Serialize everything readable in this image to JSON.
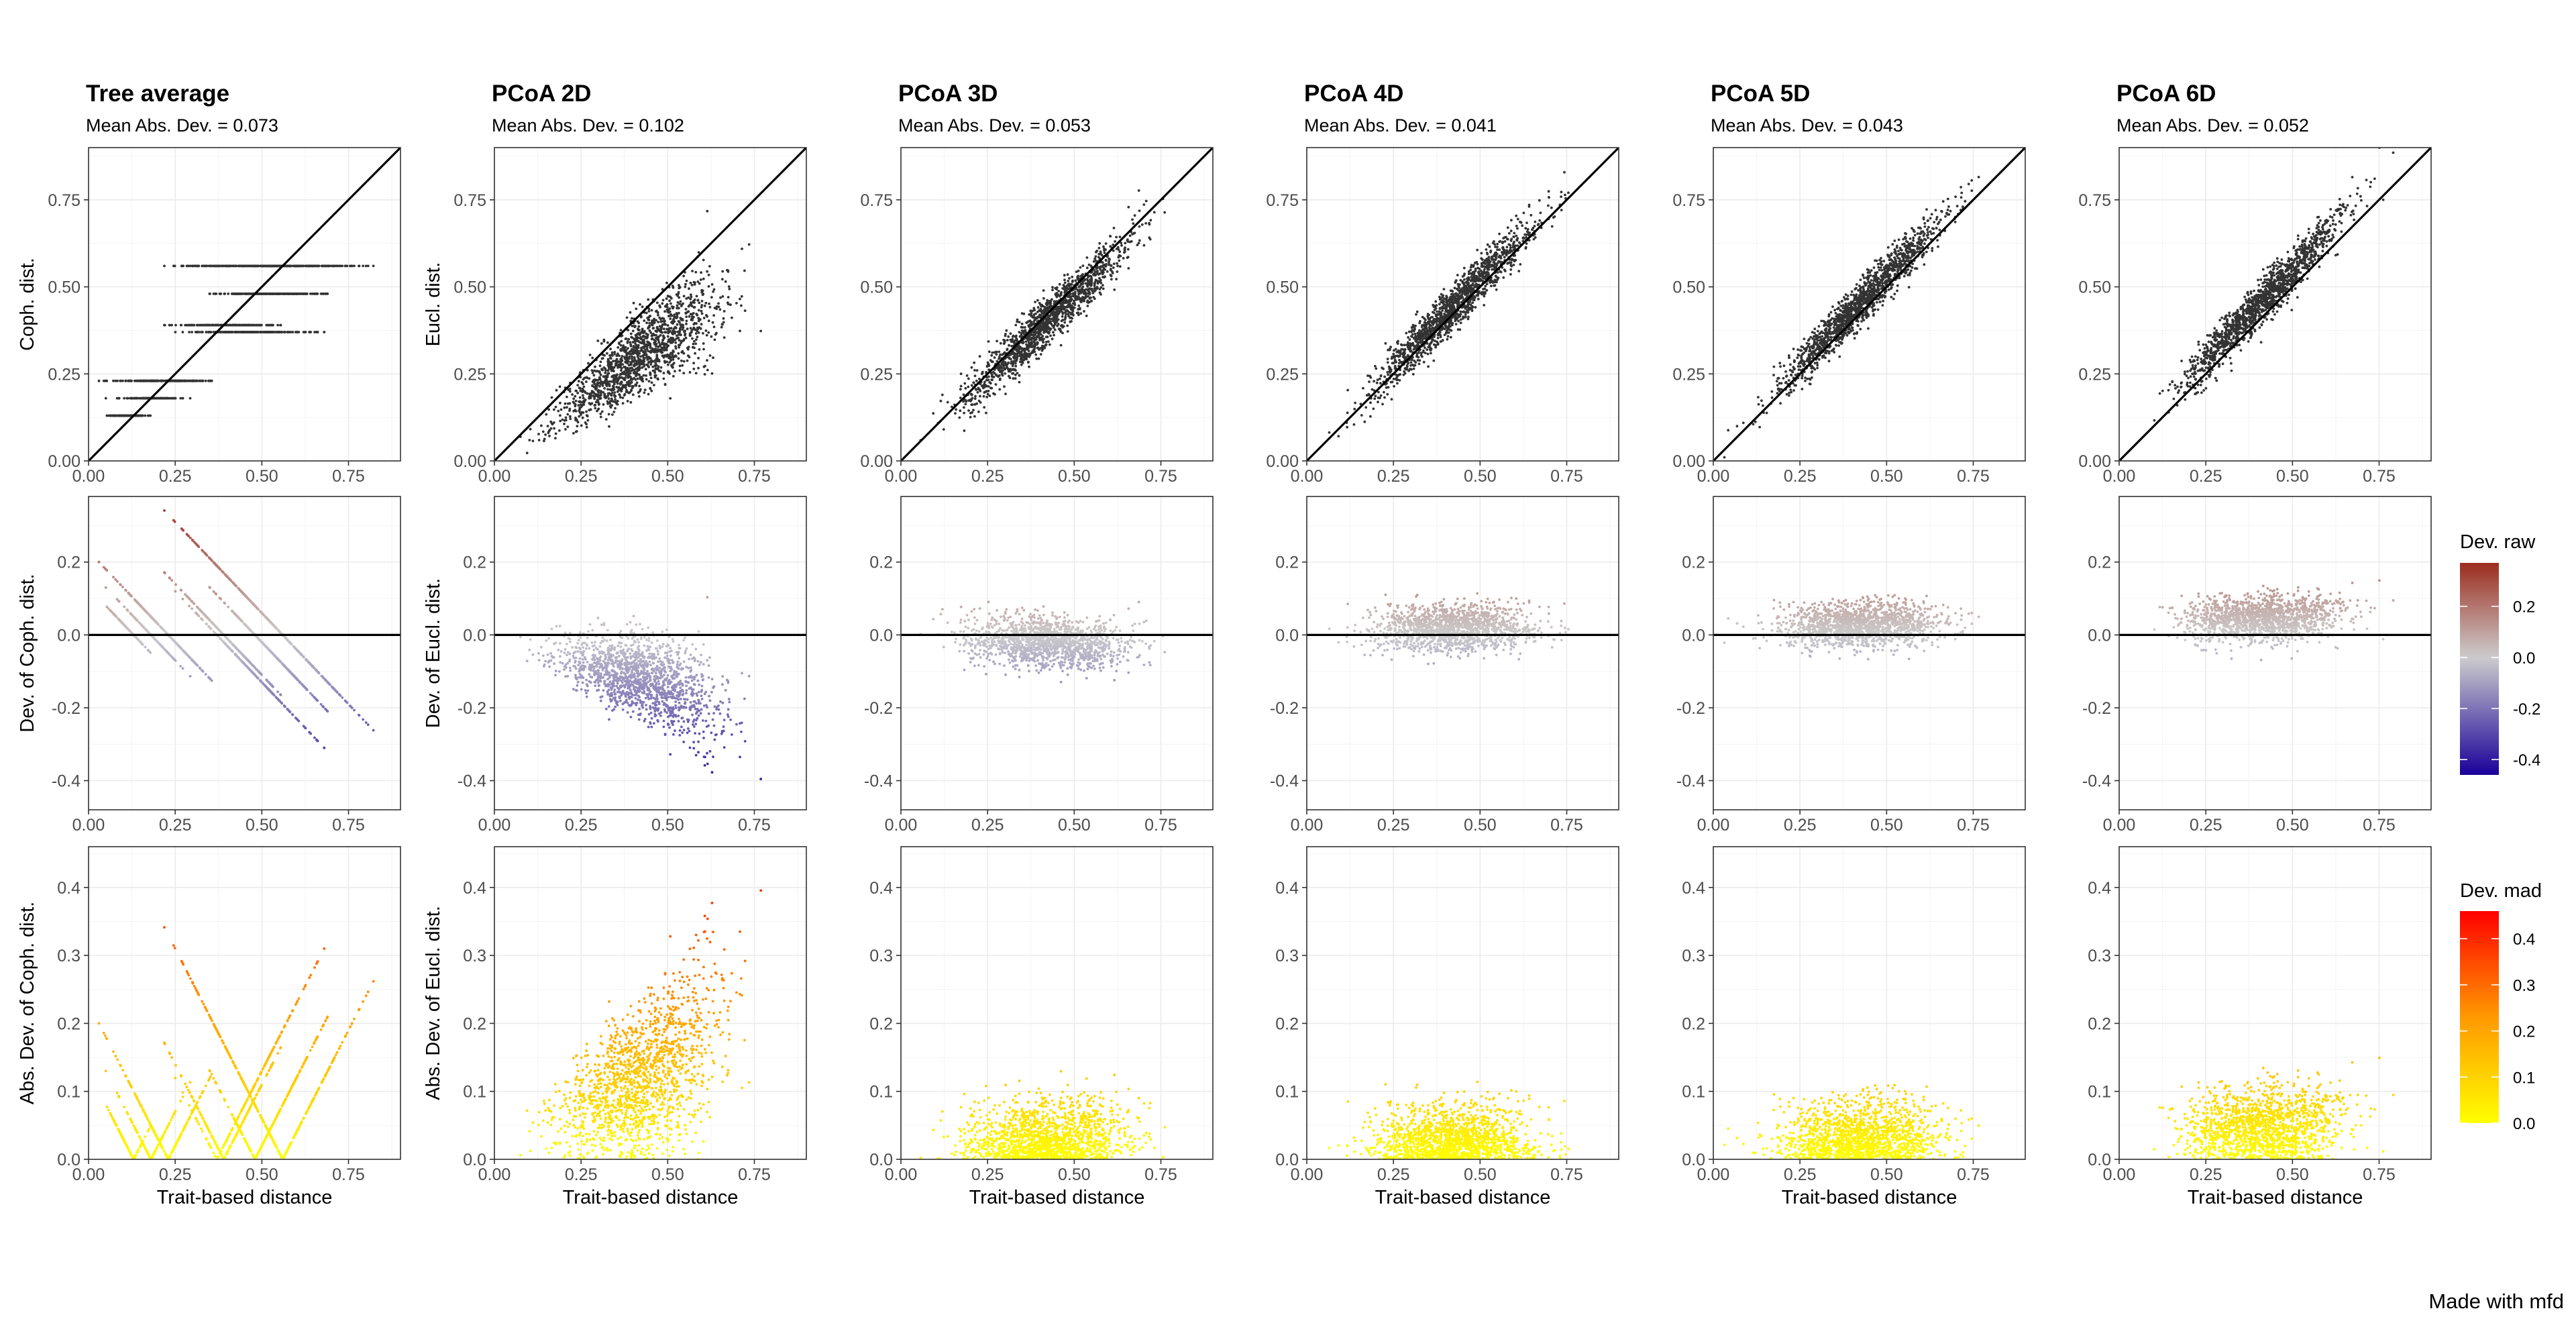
{
  "footer": "Made with mfd",
  "x_axis_title": "Trait-based distance",
  "chart_data": {
    "type": "scatter",
    "n_pairs_approx": 1500,
    "x_ticks": [
      "0.00",
      "0.25",
      "0.50",
      "0.75"
    ],
    "xlim": [
      0,
      0.9
    ],
    "panels": [
      {
        "title": "Tree average",
        "subtitle": "Mean Abs. Dev. = 0.073",
        "kind": "tree",
        "mad": 0.073,
        "row_ylabels": [
          "Coph. dist.",
          "Dev. of Coph. dist.",
          "Abs. Dev. of Coph. dist."
        ],
        "cophenetic_levels": [
          0.13,
          0.18,
          0.23,
          0.37,
          0.39,
          0.48,
          0.56
        ],
        "level_x_ranges": [
          [
            0.02,
            0.2
          ],
          [
            0.05,
            0.3
          ],
          [
            0.03,
            0.4
          ],
          [
            0.25,
            0.68
          ],
          [
            0.2,
            0.6
          ],
          [
            0.3,
            0.75
          ],
          [
            0.2,
            0.87
          ]
        ]
      },
      {
        "title": "PCoA 2D",
        "subtitle": "Mean Abs. Dev. = 0.102",
        "kind": "pcoa",
        "mad": 0.102,
        "bias": -0.08,
        "slope": 0.78,
        "spread": 0.07,
        "row_ylabels": [
          "Eucl. dist.",
          "Dev. of Eucl. dist.",
          "Abs. Dev. of Eucl. dist."
        ]
      },
      {
        "title": "PCoA 3D",
        "subtitle": "Mean Abs. Dev. = 0.053",
        "kind": "pcoa",
        "mad": 0.053,
        "bias": 0.0,
        "slope": 0.95,
        "spread": 0.05,
        "row_ylabels": [
          "",
          "",
          ""
        ]
      },
      {
        "title": "PCoA 4D",
        "subtitle": "Mean Abs. Dev. = 0.041",
        "kind": "pcoa",
        "mad": 0.041,
        "bias": 0.02,
        "slope": 1.0,
        "spread": 0.045,
        "row_ylabels": [
          "",
          "",
          ""
        ]
      },
      {
        "title": "PCoA 5D",
        "subtitle": "Mean Abs. Dev. = 0.043",
        "kind": "pcoa",
        "mad": 0.043,
        "bias": 0.03,
        "slope": 1.0,
        "spread": 0.045,
        "row_ylabels": [
          "",
          "",
          ""
        ]
      },
      {
        "title": "PCoA 6D",
        "subtitle": "Mean Abs. Dev. = 0.052",
        "kind": "pcoa",
        "mad": 0.052,
        "bias": 0.06,
        "slope": 0.98,
        "spread": 0.045,
        "row_ylabels": [
          "",
          "",
          ""
        ]
      }
    ],
    "rows": [
      {
        "name": "distance",
        "ylim": [
          0,
          0.9
        ],
        "y_ticks": [
          {
            "value": 0.0,
            "label": "0.00"
          },
          {
            "value": 0.25,
            "label": "0.25"
          },
          {
            "value": 0.5,
            "label": "0.50"
          },
          {
            "value": 0.75,
            "label": "0.75"
          }
        ],
        "reference_line": "identity",
        "point_color": "#333333"
      },
      {
        "name": "deviation",
        "ylim": [
          -0.48,
          0.38
        ],
        "y_ticks": [
          {
            "value": -0.4,
            "label": "-0.4"
          },
          {
            "value": -0.2,
            "label": "-0.2"
          },
          {
            "value": 0.0,
            "label": "0.0"
          },
          {
            "value": 0.2,
            "label": "0.2"
          }
        ],
        "reference_line": "zero"
      },
      {
        "name": "absolute deviation",
        "ylim": [
          0,
          0.46
        ],
        "y_ticks": [
          {
            "value": 0.0,
            "label": "0.0"
          },
          {
            "value": 0.1,
            "label": "0.1"
          },
          {
            "value": 0.2,
            "label": "0.2"
          },
          {
            "value": 0.3,
            "label": "0.3"
          },
          {
            "value": 0.4,
            "label": "0.4"
          }
        ],
        "reference_line": "none"
      }
    ],
    "legends": [
      {
        "title": "Dev. raw",
        "range": [
          -0.46,
          0.37
        ],
        "colors": [
          "#1a0099",
          "#cccccc",
          "#9c2d1f"
        ],
        "ticks": [
          {
            "value": 0.2,
            "label": "0.2"
          },
          {
            "value": 0.0,
            "label": "0.0"
          },
          {
            "value": -0.2,
            "label": "-0.2"
          },
          {
            "value": -0.4,
            "label": "-0.4"
          }
        ]
      },
      {
        "title": "Dev. mad",
        "range": [
          0,
          0.46
        ],
        "colors": [
          "#ffff00",
          "#ff9900",
          "#ff0000"
        ],
        "ticks": [
          {
            "value": 0.4,
            "label": "0.4"
          },
          {
            "value": 0.3,
            "label": "0.3"
          },
          {
            "value": 0.2,
            "label": "0.2"
          },
          {
            "value": 0.1,
            "label": "0.1"
          },
          {
            "value": 0.0,
            "label": "0.0"
          }
        ]
      }
    ]
  }
}
